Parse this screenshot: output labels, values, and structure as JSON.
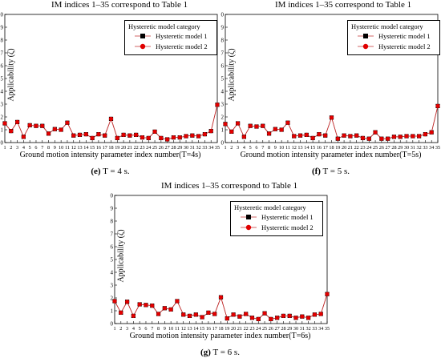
{
  "chart_data": [
    {
      "type": "line",
      "title": "IM indices 1–35 correspond to Table 1",
      "xlabel": "Ground motion intensity parameter index number(T=4s)",
      "ylabel": "Applicability (ζ)",
      "caption_label": "(e)",
      "caption_text": "T = 4 s.",
      "legend_title": "Hysteretic model category",
      "ylim": [
        0,
        10
      ],
      "yticks": [
        0,
        1,
        2,
        3,
        4,
        5,
        6,
        7,
        8,
        9,
        10
      ],
      "x": [
        1,
        2,
        3,
        4,
        5,
        6,
        7,
        8,
        9,
        10,
        11,
        12,
        13,
        14,
        15,
        16,
        17,
        18,
        19,
        20,
        21,
        22,
        23,
        24,
        25,
        26,
        27,
        28,
        29,
        30,
        31,
        32,
        33,
        34,
        35
      ],
      "series": [
        {
          "name": "Hysteretic model 1",
          "marker": "square",
          "color": "#000000",
          "values": [
            1.5,
            0.9,
            1.6,
            0.45,
            1.35,
            1.3,
            1.3,
            0.7,
            1.05,
            1.0,
            1.55,
            0.55,
            0.6,
            0.65,
            0.35,
            0.65,
            0.55,
            1.85,
            0.35,
            0.6,
            0.55,
            0.6,
            0.4,
            0.35,
            0.85,
            0.35,
            0.25,
            0.4,
            0.4,
            0.5,
            0.55,
            0.5,
            0.65,
            0.9,
            2.95
          ]
        },
        {
          "name": "Hysteretic model 2",
          "marker": "circle",
          "color": "#e00000",
          "values": [
            1.5,
            0.9,
            1.6,
            0.45,
            1.35,
            1.3,
            1.3,
            0.7,
            1.05,
            1.0,
            1.55,
            0.55,
            0.6,
            0.65,
            0.35,
            0.65,
            0.55,
            1.85,
            0.35,
            0.6,
            0.55,
            0.6,
            0.4,
            0.35,
            0.85,
            0.35,
            0.25,
            0.4,
            0.4,
            0.5,
            0.55,
            0.5,
            0.65,
            0.9,
            2.95
          ]
        }
      ]
    },
    {
      "type": "line",
      "title": "IM indices 1–35 correspond to Table 1",
      "xlabel": "Ground motion intensity parameter index number(T=5s)",
      "ylabel": "Applicability (ζ)",
      "caption_label": "(f)",
      "caption_text": "T = 5 s.",
      "legend_title": "Hysteretic model category",
      "ylim": [
        0,
        10
      ],
      "yticks": [
        0,
        1,
        2,
        3,
        4,
        5,
        6,
        7,
        8,
        9,
        10
      ],
      "x": [
        1,
        2,
        3,
        4,
        5,
        6,
        7,
        8,
        9,
        10,
        11,
        12,
        13,
        14,
        15,
        16,
        17,
        18,
        19,
        20,
        21,
        22,
        23,
        24,
        25,
        26,
        27,
        28,
        29,
        30,
        31,
        32,
        33,
        34,
        35
      ],
      "series": [
        {
          "name": "Hysteretic model 1",
          "marker": "square",
          "color": "#000000",
          "values": [
            1.45,
            0.85,
            1.5,
            0.45,
            1.3,
            1.25,
            1.3,
            0.7,
            1.05,
            1.0,
            1.55,
            0.5,
            0.55,
            0.6,
            0.35,
            0.65,
            0.55,
            1.95,
            0.3,
            0.55,
            0.5,
            0.55,
            0.35,
            0.3,
            0.8,
            0.3,
            0.3,
            0.45,
            0.45,
            0.5,
            0.5,
            0.5,
            0.65,
            0.8,
            2.85
          ]
        },
        {
          "name": "Hysteretic model 2",
          "marker": "circle",
          "color": "#e00000",
          "values": [
            1.45,
            0.85,
            1.5,
            0.45,
            1.3,
            1.25,
            1.3,
            0.7,
            1.05,
            1.0,
            1.55,
            0.5,
            0.55,
            0.6,
            0.35,
            0.65,
            0.55,
            1.95,
            0.3,
            0.55,
            0.5,
            0.55,
            0.35,
            0.3,
            0.8,
            0.3,
            0.3,
            0.45,
            0.45,
            0.5,
            0.5,
            0.5,
            0.65,
            0.8,
            2.85
          ]
        }
      ]
    },
    {
      "type": "line",
      "title": "IM indices 1–35 correspond to Table 1",
      "xlabel": "Ground motion intensity parameter index number(T=6s)",
      "ylabel": "Applicability (ζ)",
      "caption_label": "(g)",
      "caption_text": "T = 6 s.",
      "legend_title": "Hysteretic model category",
      "ylim": [
        0,
        10
      ],
      "yticks": [
        0,
        1,
        2,
        3,
        4,
        5,
        6,
        7,
        8,
        9,
        10
      ],
      "x": [
        1,
        2,
        3,
        4,
        5,
        6,
        7,
        8,
        9,
        10,
        11,
        12,
        13,
        14,
        15,
        16,
        17,
        18,
        19,
        20,
        21,
        22,
        23,
        24,
        25,
        26,
        27,
        28,
        29,
        30,
        31,
        32,
        33,
        34,
        35
      ],
      "series": [
        {
          "name": "Hysteretic model 1",
          "marker": "square",
          "color": "#000000",
          "values": [
            1.75,
            0.85,
            1.7,
            0.6,
            1.5,
            1.45,
            1.4,
            0.75,
            1.2,
            1.1,
            1.75,
            0.7,
            0.6,
            0.7,
            0.5,
            0.85,
            0.75,
            2.05,
            0.4,
            0.7,
            0.55,
            0.75,
            0.45,
            0.35,
            0.8,
            0.35,
            0.45,
            0.6,
            0.6,
            0.45,
            0.55,
            0.45,
            0.7,
            0.75,
            2.3
          ]
        },
        {
          "name": "Hysteretic model 2",
          "marker": "circle",
          "color": "#e00000",
          "values": [
            1.75,
            0.85,
            1.7,
            0.6,
            1.5,
            1.45,
            1.4,
            0.75,
            1.2,
            1.1,
            1.75,
            0.7,
            0.6,
            0.7,
            0.5,
            0.85,
            0.75,
            2.05,
            0.4,
            0.7,
            0.55,
            0.75,
            0.45,
            0.35,
            0.8,
            0.35,
            0.45,
            0.6,
            0.6,
            0.45,
            0.55,
            0.45,
            0.7,
            0.75,
            2.3
          ]
        }
      ]
    }
  ]
}
